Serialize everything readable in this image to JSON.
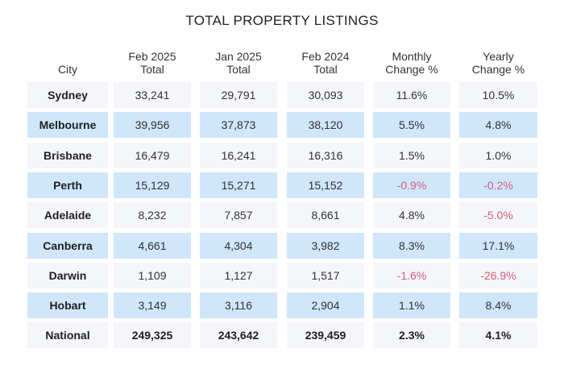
{
  "chart_data": {
    "type": "table",
    "title": "TOTAL PROPERTY LISTINGS",
    "columns": [
      {
        "line1": "",
        "line2": "City"
      },
      {
        "line1": "Feb 2025",
        "line2": "Total"
      },
      {
        "line1": "Jan 2025",
        "line2": "Total"
      },
      {
        "line1": "Feb 2024",
        "line2": "Total"
      },
      {
        "line1": "Monthly",
        "line2": "Change %"
      },
      {
        "line1": "Yearly",
        "line2": "Change %"
      }
    ],
    "rows": [
      [
        "Sydney",
        "33,241",
        "29,791",
        "30,093",
        "11.6%",
        "10.5%"
      ],
      [
        "Melbourne",
        "39,956",
        "37,873",
        "38,120",
        "5.5%",
        "4.8%"
      ],
      [
        "Brisbane",
        "16,479",
        "16,241",
        "16,316",
        "1.5%",
        "1.0%"
      ],
      [
        "Perth",
        "15,129",
        "15,271",
        "15,152",
        "-0.9%",
        "-0.2%"
      ],
      [
        "Adelaide",
        "8,232",
        "7,857",
        "8,661",
        "4.8%",
        "-5.0%"
      ],
      [
        "Canberra",
        "4,661",
        "4,304",
        "3,982",
        "8.3%",
        "17.1%"
      ],
      [
        "Darwin",
        "1,109",
        "1,127",
        "1,517",
        "-1.6%",
        "-26.9%"
      ],
      [
        "Hobart",
        "3,149",
        "3,116",
        "2,904",
        "1.1%",
        "8.4%"
      ],
      [
        "National",
        "249,325",
        "243,642",
        "239,459",
        "2.3%",
        "4.1%"
      ]
    ],
    "highlighted_rows": [
      "Melbourne",
      "Perth",
      "Canberra",
      "Hobart"
    ],
    "colors": {
      "row_base": "#f4f6f9",
      "row_highlight": "#cfe6fb",
      "negative_text": "#d95b7a",
      "text": "#333333"
    }
  }
}
